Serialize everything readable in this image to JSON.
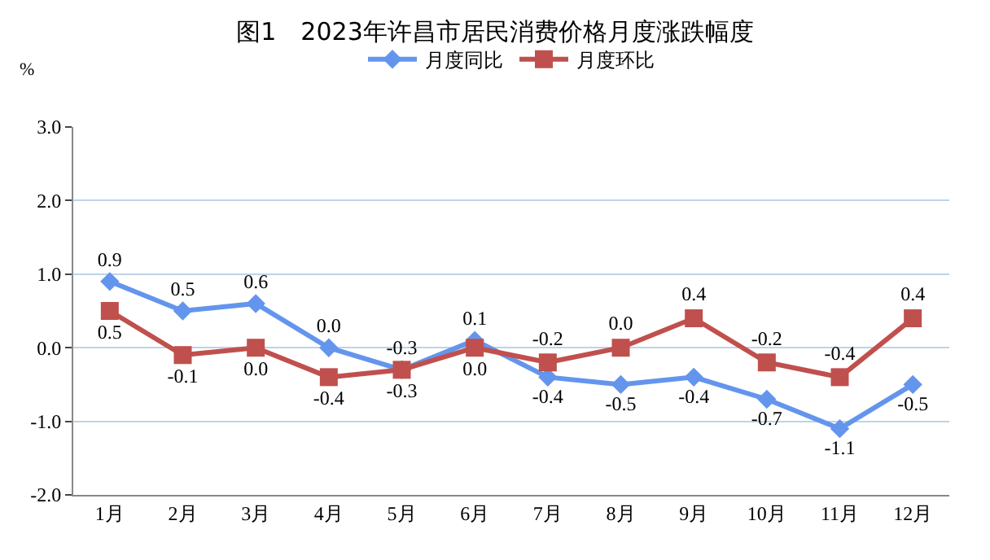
{
  "chart_data": {
    "type": "line",
    "title": "图1　2023年许昌市居民消费价格月度涨跌幅度",
    "ylabel": "%",
    "categories": [
      "1月",
      "2月",
      "3月",
      "4月",
      "5月",
      "6月",
      "7月",
      "8月",
      "9月",
      "10月",
      "11月",
      "12月"
    ],
    "series": [
      {
        "name": "月度同比",
        "color": "#6495ed",
        "marker": "diamond",
        "values": [
          0.9,
          0.5,
          0.6,
          0.0,
          -0.3,
          0.1,
          -0.4,
          -0.5,
          -0.4,
          -0.7,
          -1.1,
          -0.5
        ],
        "value_labels": [
          "0.9",
          "0.5",
          "0.6",
          "0.0",
          "-0.3",
          "0.1",
          "-0.4",
          "-0.5",
          "-0.4",
          "-0.7",
          "-1.1",
          "-0.5"
        ]
      },
      {
        "name": "月度环比",
        "color": "#c0504d",
        "marker": "square",
        "values": [
          0.5,
          -0.1,
          0.0,
          -0.4,
          -0.3,
          0.0,
          -0.2,
          0.0,
          0.4,
          -0.2,
          -0.4,
          0.4
        ],
        "value_labels": [
          "0.5",
          "-0.1",
          "0.0",
          "-0.4",
          "-0.3",
          "0.0",
          "-0.2",
          "0.0",
          "0.4",
          "-0.2",
          "-0.4",
          "0.4"
        ]
      }
    ],
    "ylim": [
      -2,
      3
    ],
    "yticks": [
      {
        "value": -2,
        "label": "-2.0"
      },
      {
        "value": -1,
        "label": "-1.0"
      },
      {
        "value": 0,
        "label": "0.0"
      },
      {
        "value": 1,
        "label": "1.0"
      },
      {
        "value": 2,
        "label": "2.0"
      },
      {
        "value": 3,
        "label": "3.0"
      }
    ],
    "grid": "y",
    "legend": "top",
    "line_style": "solid"
  }
}
